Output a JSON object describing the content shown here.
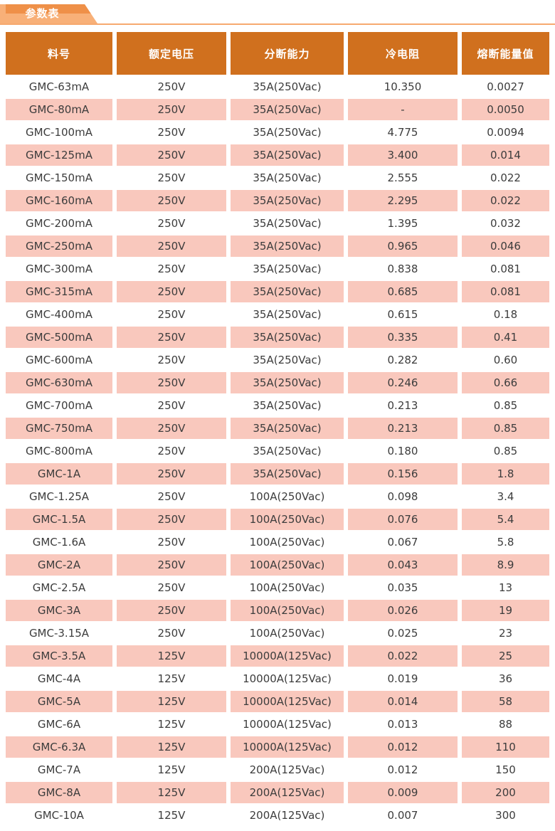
{
  "tab": {
    "label": "参数表"
  },
  "colors": {
    "header_bg": "#D0701E",
    "row_alt_bg": "#F9C8BD",
    "tab_dark": "#EF9048",
    "tab_light": "#F8B078",
    "tab_line": "#F6A96F"
  },
  "table": {
    "columns": [
      "料号",
      "额定电压",
      "分断能力",
      "冷电阻",
      "熔断能量值"
    ],
    "rows": [
      [
        "GMC-63mA",
        "250V",
        "35A(250Vac)",
        "10.350",
        "0.0027"
      ],
      [
        "GMC-80mA",
        "250V",
        "35A(250Vac)",
        "-",
        "0.0050"
      ],
      [
        "GMC-100mA",
        "250V",
        "35A(250Vac)",
        "4.775",
        "0.0094"
      ],
      [
        "GMC-125mA",
        "250V",
        "35A(250Vac)",
        "3.400",
        "0.014"
      ],
      [
        "GMC-150mA",
        "250V",
        "35A(250Vac)",
        "2.555",
        "0.022"
      ],
      [
        "GMC-160mA",
        "250V",
        "35A(250Vac)",
        "2.295",
        "0.022"
      ],
      [
        "GMC-200mA",
        "250V",
        "35A(250Vac)",
        "1.395",
        "0.032"
      ],
      [
        "GMC-250mA",
        "250V",
        "35A(250Vac)",
        "0.965",
        "0.046"
      ],
      [
        "GMC-300mA",
        "250V",
        "35A(250Vac)",
        "0.838",
        "0.081"
      ],
      [
        "GMC-315mA",
        "250V",
        "35A(250Vac)",
        "0.685",
        "0.081"
      ],
      [
        "GMC-400mA",
        "250V",
        "35A(250Vac)",
        "0.615",
        "0.18"
      ],
      [
        "GMC-500mA",
        "250V",
        "35A(250Vac)",
        "0.335",
        "0.41"
      ],
      [
        "GMC-600mA",
        "250V",
        "35A(250Vac)",
        "0.282",
        "0.60"
      ],
      [
        "GMC-630mA",
        "250V",
        "35A(250Vac)",
        "0.246",
        "0.66"
      ],
      [
        "GMC-700mA",
        "250V",
        "35A(250Vac)",
        "0.213",
        "0.85"
      ],
      [
        "GMC-750mA",
        "250V",
        "35A(250Vac)",
        "0.213",
        "0.85"
      ],
      [
        "GMC-800mA",
        "250V",
        "35A(250Vac)",
        "0.180",
        "0.85"
      ],
      [
        "GMC-1A",
        "250V",
        "35A(250Vac)",
        "0.156",
        "1.8"
      ],
      [
        "GMC-1.25A",
        "250V",
        "100A(250Vac)",
        "0.098",
        "3.4"
      ],
      [
        "GMC-1.5A",
        "250V",
        "100A(250Vac)",
        "0.076",
        "5.4"
      ],
      [
        "GMC-1.6A",
        "250V",
        "100A(250Vac)",
        "0.067",
        "5.8"
      ],
      [
        "GMC-2A",
        "250V",
        "100A(250Vac)",
        "0.043",
        "8.9"
      ],
      [
        "GMC-2.5A",
        "250V",
        "100A(250Vac)",
        "0.035",
        "13"
      ],
      [
        "GMC-3A",
        "250V",
        "100A(250Vac)",
        "0.026",
        "19"
      ],
      [
        "GMC-3.15A",
        "250V",
        "100A(250Vac)",
        "0.025",
        "23"
      ],
      [
        "GMC-3.5A",
        "125V",
        "10000A(125Vac)",
        "0.022",
        "25"
      ],
      [
        "GMC-4A",
        "125V",
        "10000A(125Vac)",
        "0.019",
        "36"
      ],
      [
        "GMC-5A",
        "125V",
        "10000A(125Vac)",
        "0.014",
        "58"
      ],
      [
        "GMC-6A",
        "125V",
        "10000A(125Vac)",
        "0.013",
        "88"
      ],
      [
        "GMC-6.3A",
        "125V",
        "10000A(125Vac)",
        "0.012",
        "110"
      ],
      [
        "GMC-7A",
        "125V",
        "200A(125Vac)",
        "0.012",
        "150"
      ],
      [
        "GMC-8A",
        "125V",
        "200A(125Vac)",
        "0.009",
        "200"
      ],
      [
        "GMC-10A",
        "125V",
        "200A(125Vac)",
        "0.007",
        "300"
      ]
    ]
  }
}
